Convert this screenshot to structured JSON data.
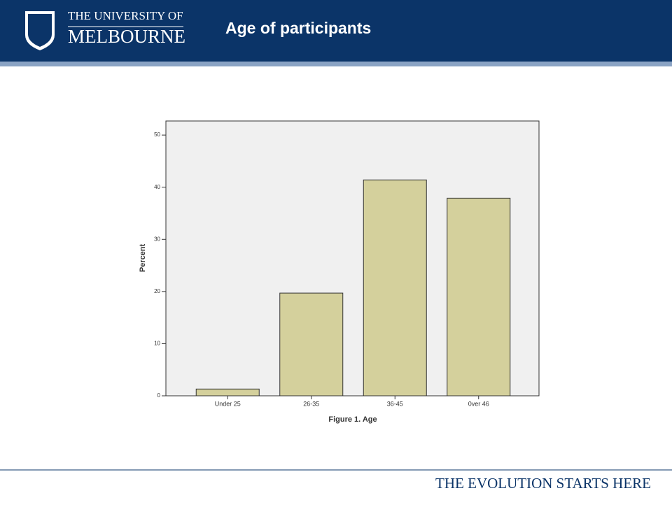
{
  "header": {
    "university_line1": "THE UNIVERSITY OF",
    "university_line2": "MELBOURNE",
    "title": "Age of participants"
  },
  "footer": {
    "tagline": "THE EVOLUTION STARTS HERE"
  },
  "chart_data": {
    "type": "bar",
    "x_label": "Figure 1. Age",
    "y_label": "Percent",
    "categories": [
      "Under 25",
      "26-35",
      "36-45",
      "0ver 46"
    ],
    "values": [
      1.3,
      19.7,
      41.4,
      37.9
    ],
    "color": "#d4d09c",
    "ylim": [
      0,
      52.7
    ],
    "yticks": [
      0,
      10,
      20,
      30,
      40,
      50
    ],
    "grid": false
  }
}
